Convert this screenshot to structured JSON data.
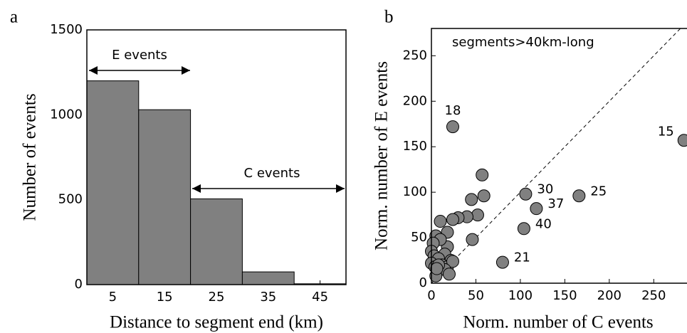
{
  "chart_data": [
    {
      "type": "histogram",
      "panel": "a",
      "xlabel": "Distance to segment end (km)",
      "ylabel": "Number of events",
      "bins": [
        0,
        10,
        20,
        30,
        40,
        50
      ],
      "values": [
        1200,
        1030,
        505,
        75,
        5
      ],
      "color": "#808080",
      "xlim": [
        0,
        50
      ],
      "ylim": [
        0,
        1500
      ],
      "xticks": [
        5,
        15,
        25,
        35,
        45
      ],
      "yticks": [
        0,
        500,
        1000,
        1500
      ],
      "annotations": [
        "E events",
        "C events"
      ]
    },
    {
      "type": "scatter",
      "panel": "b",
      "xlabel": "Norm. number of C events",
      "ylabel": "Norm. number of E events",
      "title": "segments>40km-long",
      "color": "#808080",
      "x": [
        24,
        284,
        106,
        118,
        166,
        104,
        80,
        57,
        59,
        45,
        52,
        40,
        30,
        24,
        10,
        18,
        46,
        18,
        5,
        10,
        2,
        0,
        3,
        15,
        8,
        22,
        0,
        4,
        12,
        18,
        24,
        15,
        8,
        5,
        20,
        6
      ],
      "y": [
        172,
        157,
        98,
        82,
        96,
        60,
        23,
        119,
        96,
        92,
        75,
        73,
        72,
        70,
        68,
        56,
        48,
        40,
        52,
        48,
        44,
        35,
        30,
        32,
        27,
        25,
        22,
        18,
        20,
        18,
        24,
        15,
        20,
        8,
        10,
        16
      ],
      "point_labels": [
        "18",
        "15",
        "30",
        "37",
        "25",
        "40",
        "21",
        null,
        null,
        null,
        null,
        null,
        null,
        null,
        null,
        null,
        null,
        null,
        null,
        null,
        null,
        null,
        null,
        null,
        null,
        null,
        null,
        null,
        null,
        null,
        null,
        null,
        null,
        null,
        null,
        null
      ],
      "xlim": [
        0,
        285
      ],
      "ylim": [
        0,
        280
      ],
      "xticks": [
        0,
        50,
        100,
        150,
        200,
        250
      ],
      "yticks": [
        0,
        50,
        100,
        150,
        200,
        250
      ]
    }
  ]
}
